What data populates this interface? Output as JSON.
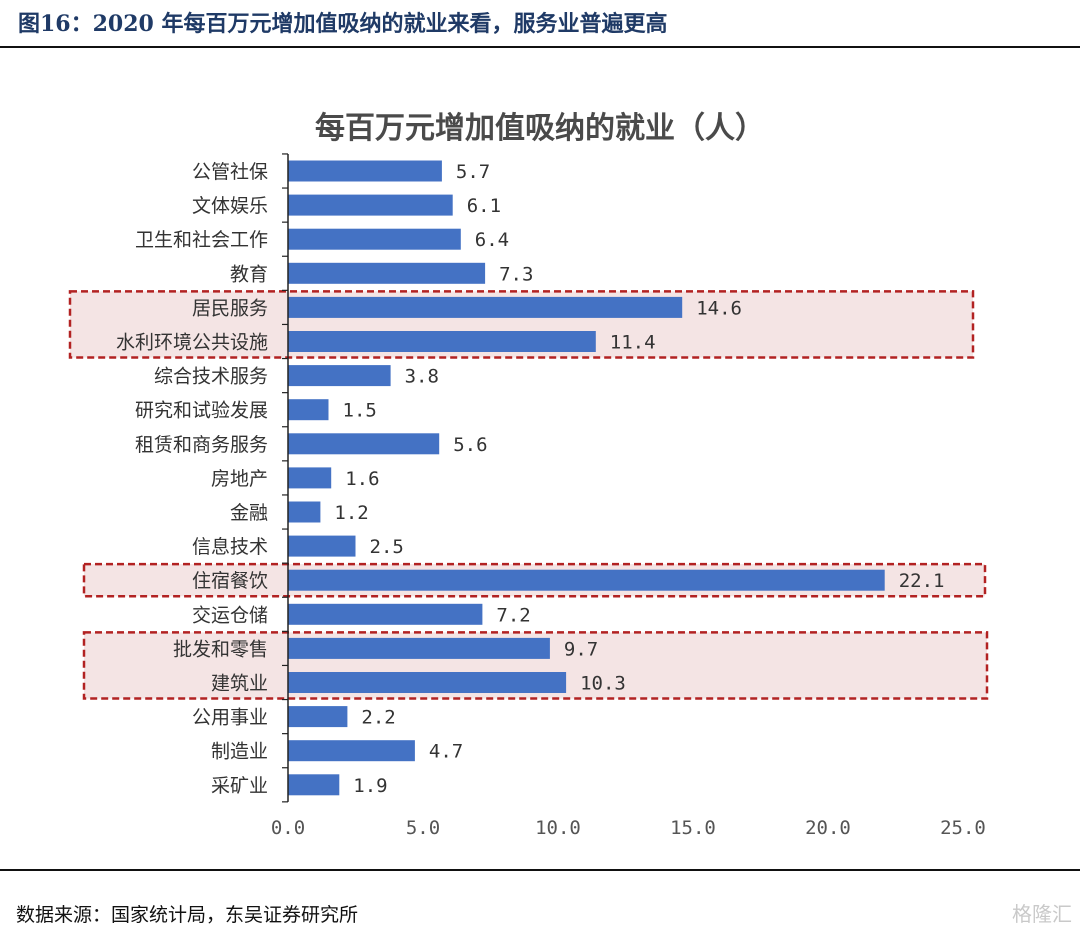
{
  "header": {
    "figure_title": "图16：2020 年每百万元增加值吸纳的就业来看，服务业普遍更高"
  },
  "footer": {
    "source": "数据来源：国家统计局，东吴证券研究所",
    "watermark": "格隆汇"
  },
  "colors": {
    "bar": "#4472c4",
    "highlight_fill": "#f4e4e4",
    "highlight_border": "#b22222",
    "title_text": "#1f3a66"
  },
  "chart_data": {
    "type": "bar",
    "orientation": "horizontal",
    "title": "每百万元增加值吸纳的就业（人）",
    "categories": [
      "公管社保",
      "文体娱乐",
      "卫生和社会工作",
      "教育",
      "居民服务",
      "水利环境公共设施",
      "综合技术服务",
      "研究和试验发展",
      "租赁和商务服务",
      "房地产",
      "金融",
      "信息技术",
      "住宿餐饮",
      "交运仓储",
      "批发和零售",
      "建筑业",
      "公用事业",
      "制造业",
      "采矿业"
    ],
    "values": [
      5.7,
      6.1,
      6.4,
      7.3,
      14.6,
      11.4,
      3.8,
      1.5,
      5.6,
      1.6,
      1.2,
      2.5,
      22.1,
      7.2,
      9.7,
      10.3,
      2.2,
      4.7,
      1.9
    ],
    "value_labels": [
      "5.7",
      "6.1",
      "6.4",
      "7.3",
      "14.6",
      "11.4",
      "3.8",
      "1.5",
      "5.6",
      "1.6",
      "1.2",
      "2.5",
      "22.1",
      "7.2",
      "9.7",
      "10.3",
      "2.2",
      "4.7",
      "1.9"
    ],
    "xlim": [
      0,
      25
    ],
    "xticks": [
      0,
      5,
      10,
      15,
      20,
      25
    ],
    "xtick_labels": [
      "0.0",
      "5.0",
      "10.0",
      "15.0",
      "20.0",
      "25.0"
    ],
    "highlight_groups": [
      [
        "居民服务",
        "水利环境公共设施"
      ],
      [
        "住宿餐饮"
      ],
      [
        "批发和零售",
        "建筑业"
      ]
    ],
    "grid": false,
    "legend": "none"
  }
}
